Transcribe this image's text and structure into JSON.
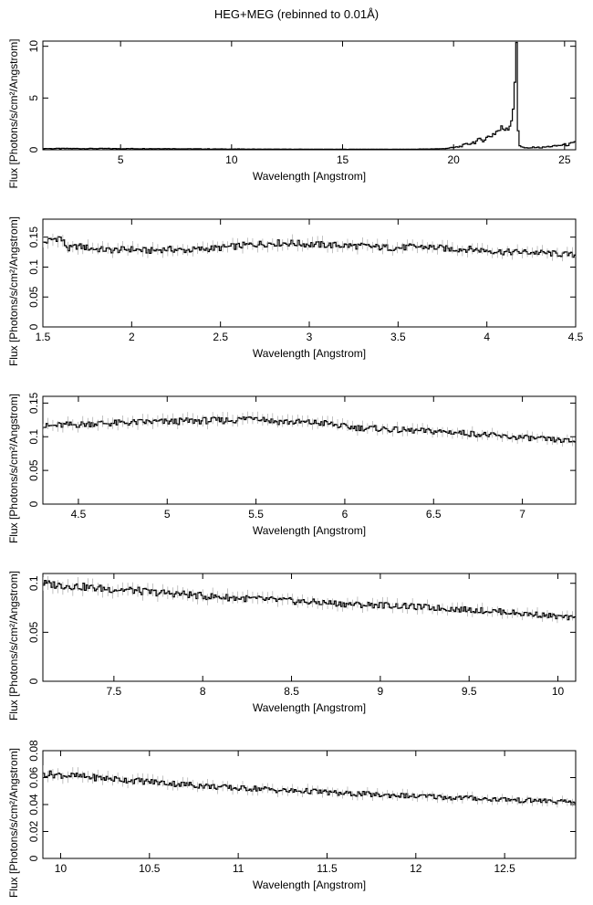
{
  "title": "HEG+MEG (rebinned to 0.01Å)",
  "chart_data": [
    {
      "type": "line",
      "xlabel": "Wavelength [Angstrom]",
      "ylabel": "Flux [Photons/s/cm²/Angstrom]",
      "xlim": [
        1.5,
        25.5
      ],
      "ylim": [
        0,
        10.5
      ],
      "xticks": [
        "5",
        "10",
        "15",
        "20",
        "25"
      ],
      "yticks": [
        "0",
        "5",
        "10"
      ],
      "series": [
        {
          "x": [
            1.5,
            3,
            5,
            7,
            8,
            10,
            12,
            14,
            16,
            18,
            19,
            19.5,
            20,
            20.3,
            20.6,
            20.9,
            21.2,
            21.5,
            21.8,
            22.0,
            22.2,
            22.4,
            22.6,
            22.7,
            22.8,
            22.85,
            22.9,
            22.95,
            23.0,
            23.1,
            23.2,
            23.4,
            23.7,
            24.0,
            24.3,
            24.6,
            24.9,
            25.2,
            25.5
          ],
          "y": [
            0.12,
            0.12,
            0.11,
            0.11,
            0.09,
            0.07,
            0.06,
            0.05,
            0.05,
            0.05,
            0.08,
            0.1,
            0.2,
            0.3,
            0.5,
            0.7,
            0.9,
            1.1,
            1.5,
            1.8,
            2.0,
            2.2,
            2.5,
            3.8,
            5.5,
            10.4,
            10.0,
            2.0,
            0.5,
            0.3,
            0.2,
            0.15,
            0.25,
            0.2,
            0.3,
            0.35,
            0.45,
            0.5,
            0.65
          ]
        }
      ]
    },
    {
      "type": "line",
      "xlabel": "Wavelength [Angstrom]",
      "ylabel": "Flux [Photons/s/cm²/Angstrom]",
      "xlim": [
        1.5,
        4.5
      ],
      "ylim": [
        0,
        0.18
      ],
      "xticks": [
        "1.5",
        "2",
        "2.5",
        "3",
        "3.5",
        "4",
        "4.5"
      ],
      "yticks": [
        "0",
        "0.05",
        "0.1",
        "0.15"
      ],
      "series": [
        {
          "x": [
            1.5,
            1.55,
            1.6,
            1.65,
            1.7,
            1.8,
            1.9,
            2.0,
            2.1,
            2.2,
            2.3,
            2.4,
            2.5,
            2.6,
            2.7,
            2.8,
            2.9,
            3.0,
            3.1,
            3.2,
            3.3,
            3.4,
            3.5,
            3.6,
            3.7,
            3.8,
            3.9,
            4.0,
            4.1,
            4.2,
            4.3,
            4.4,
            4.5
          ],
          "y": [
            0.14,
            0.145,
            0.15,
            0.13,
            0.135,
            0.13,
            0.128,
            0.13,
            0.127,
            0.13,
            0.128,
            0.13,
            0.132,
            0.135,
            0.138,
            0.14,
            0.14,
            0.138,
            0.137,
            0.136,
            0.135,
            0.133,
            0.132,
            0.134,
            0.133,
            0.13,
            0.13,
            0.128,
            0.125,
            0.125,
            0.124,
            0.122,
            0.12
          ]
        }
      ]
    },
    {
      "type": "line",
      "xlabel": "Wavelength [Angstrom]",
      "ylabel": "Flux [Photons/s/cm²/Angstrom]",
      "xlim": [
        4.3,
        7.3
      ],
      "ylim": [
        0,
        0.16
      ],
      "xticks": [
        "4.5",
        "5",
        "5.5",
        "6",
        "6.5",
        "7"
      ],
      "yticks": [
        "0",
        "0.05",
        "0.1",
        "0.15"
      ],
      "series": [
        {
          "x": [
            4.3,
            4.4,
            4.5,
            4.6,
            4.7,
            4.8,
            4.9,
            5.0,
            5.1,
            5.2,
            5.3,
            5.4,
            5.5,
            5.6,
            5.7,
            5.8,
            5.9,
            6.0,
            6.1,
            6.2,
            6.3,
            6.4,
            6.5,
            6.6,
            6.7,
            6.8,
            6.9,
            7.0,
            7.1,
            7.2,
            7.3
          ],
          "y": [
            0.115,
            0.117,
            0.118,
            0.12,
            0.12,
            0.121,
            0.122,
            0.122,
            0.123,
            0.124,
            0.124,
            0.125,
            0.13,
            0.123,
            0.122,
            0.121,
            0.12,
            0.115,
            0.113,
            0.112,
            0.11,
            0.109,
            0.108,
            0.107,
            0.105,
            0.103,
            0.1,
            0.099,
            0.097,
            0.095,
            0.093
          ]
        }
      ]
    },
    {
      "type": "line",
      "xlabel": "Wavelength [Angstrom]",
      "ylabel": "Flux [Photons/s/cm²/Angstrom]",
      "xlim": [
        7.1,
        10.1
      ],
      "ylim": [
        0,
        0.11
      ],
      "xticks": [
        "7.5",
        "8",
        "8.5",
        "9",
        "9.5",
        "10"
      ],
      "yticks": [
        "0",
        "0.05",
        "0.1"
      ],
      "series": [
        {
          "x": [
            7.1,
            7.2,
            7.3,
            7.4,
            7.5,
            7.6,
            7.7,
            7.8,
            7.9,
            8.0,
            8.1,
            8.2,
            8.3,
            8.4,
            8.5,
            8.6,
            8.7,
            8.8,
            8.9,
            9.0,
            9.1,
            9.2,
            9.3,
            9.4,
            9.5,
            9.6,
            9.7,
            9.8,
            9.9,
            10.0,
            10.1
          ],
          "y": [
            0.1,
            0.098,
            0.097,
            0.095,
            0.094,
            0.093,
            0.091,
            0.09,
            0.089,
            0.087,
            0.086,
            0.085,
            0.084,
            0.083,
            0.082,
            0.081,
            0.08,
            0.079,
            0.078,
            0.078,
            0.077,
            0.076,
            0.075,
            0.074,
            0.073,
            0.072,
            0.071,
            0.069,
            0.068,
            0.066,
            0.064
          ]
        }
      ]
    },
    {
      "type": "line",
      "xlabel": "Wavelength [Angstrom]",
      "ylabel": "Flux [Photons/s/cm²/Angstrom]",
      "xlim": [
        9.9,
        12.9
      ],
      "ylim": [
        0,
        0.08
      ],
      "xticks": [
        "10",
        "10.5",
        "11",
        "11.5",
        "12",
        "12.5"
      ],
      "yticks": [
        "0",
        "0.02",
        "0.04",
        "0.06",
        "0.08"
      ],
      "series": [
        {
          "x": [
            9.9,
            10.0,
            10.1,
            10.2,
            10.3,
            10.4,
            10.5,
            10.6,
            10.7,
            10.8,
            10.9,
            11.0,
            11.1,
            11.2,
            11.3,
            11.4,
            11.5,
            11.6,
            11.7,
            11.8,
            11.9,
            12.0,
            12.1,
            12.2,
            12.3,
            12.4,
            12.5,
            12.6,
            12.7,
            12.8,
            12.9
          ],
          "y": [
            0.063,
            0.062,
            0.061,
            0.06,
            0.059,
            0.058,
            0.057,
            0.056,
            0.055,
            0.054,
            0.053,
            0.052,
            0.052,
            0.051,
            0.05,
            0.05,
            0.049,
            0.048,
            0.048,
            0.047,
            0.047,
            0.046,
            0.046,
            0.045,
            0.045,
            0.044,
            0.044,
            0.043,
            0.043,
            0.042,
            0.042
          ]
        }
      ]
    }
  ]
}
